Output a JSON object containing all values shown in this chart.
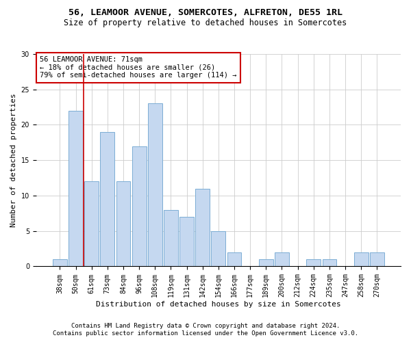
{
  "title": "56, LEAMOOR AVENUE, SOMERCOTES, ALFRETON, DE55 1RL",
  "subtitle": "Size of property relative to detached houses in Somercotes",
  "xlabel": "Distribution of detached houses by size in Somercotes",
  "ylabel": "Number of detached properties",
  "categories": [
    "38sqm",
    "50sqm",
    "61sqm",
    "73sqm",
    "84sqm",
    "96sqm",
    "108sqm",
    "119sqm",
    "131sqm",
    "142sqm",
    "154sqm",
    "166sqm",
    "177sqm",
    "189sqm",
    "200sqm",
    "212sqm",
    "224sqm",
    "235sqm",
    "247sqm",
    "258sqm",
    "270sqm"
  ],
  "values": [
    1,
    22,
    12,
    19,
    12,
    17,
    23,
    8,
    7,
    11,
    5,
    2,
    0,
    1,
    2,
    0,
    1,
    1,
    0,
    2,
    2
  ],
  "bar_color": "#c5d8f0",
  "bar_edge_color": "#7badd4",
  "vline_x_index": 2,
  "vline_color": "#cc0000",
  "annotation_text": "56 LEAMOOR AVENUE: 71sqm\n← 18% of detached houses are smaller (26)\n79% of semi-detached houses are larger (114) →",
  "annotation_box_color": "#ffffff",
  "annotation_box_edge": "#cc0000",
  "ylim": [
    0,
    30
  ],
  "yticks": [
    0,
    5,
    10,
    15,
    20,
    25,
    30
  ],
  "footer1": "Contains HM Land Registry data © Crown copyright and database right 2024.",
  "footer2": "Contains public sector information licensed under the Open Government Licence v3.0.",
  "background_color": "#ffffff",
  "grid_color": "#cccccc",
  "title_fontsize": 9.5,
  "subtitle_fontsize": 8.5,
  "ylabel_fontsize": 8,
  "xlabel_fontsize": 8,
  "tick_fontsize": 7,
  "annotation_fontsize": 7.5,
  "footer_fontsize": 6.5
}
